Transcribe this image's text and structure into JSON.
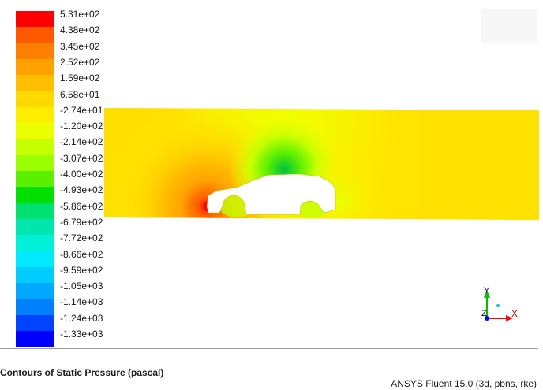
{
  "viewer": {
    "legend": {
      "labels": [
        "5.31e+02",
        "4.38e+02",
        "3.45e+02",
        "2.52e+02",
        "1.59e+02",
        "6.58e+01",
        "-2.74e+01",
        "-1.20e+02",
        "-2.14e+02",
        "-3.07e+02",
        "-4.00e+02",
        "-4.93e+02",
        "-5.86e+02",
        "-6.79e+02",
        "-7.72e+02",
        "-8.66e+02",
        "-9.59e+02",
        "-1.05e+03",
        "-1.14e+03",
        "-1.24e+03",
        "-1.33e+03"
      ],
      "colors": [
        "#ff0000",
        "#ff5a00",
        "#ff8000",
        "#ffa200",
        "#ffbf00",
        "#ffd900",
        "#ffee00",
        "#eaff00",
        "#c6ff00",
        "#9aff00",
        "#5af000",
        "#00e000",
        "#00e070",
        "#00e6b0",
        "#00f0d8",
        "#00eaff",
        "#00ccff",
        "#00a8ff",
        "#0080ff",
        "#0044ff",
        "#0000ff"
      ]
    },
    "axes": {
      "y_label": "Y",
      "z_label": "Z",
      "x_label": "X"
    },
    "caption": "Contours of Static Pressure (pascal)",
    "footer": "ANSYS Fluent 15.0 (3d, pbns, rke)"
  }
}
